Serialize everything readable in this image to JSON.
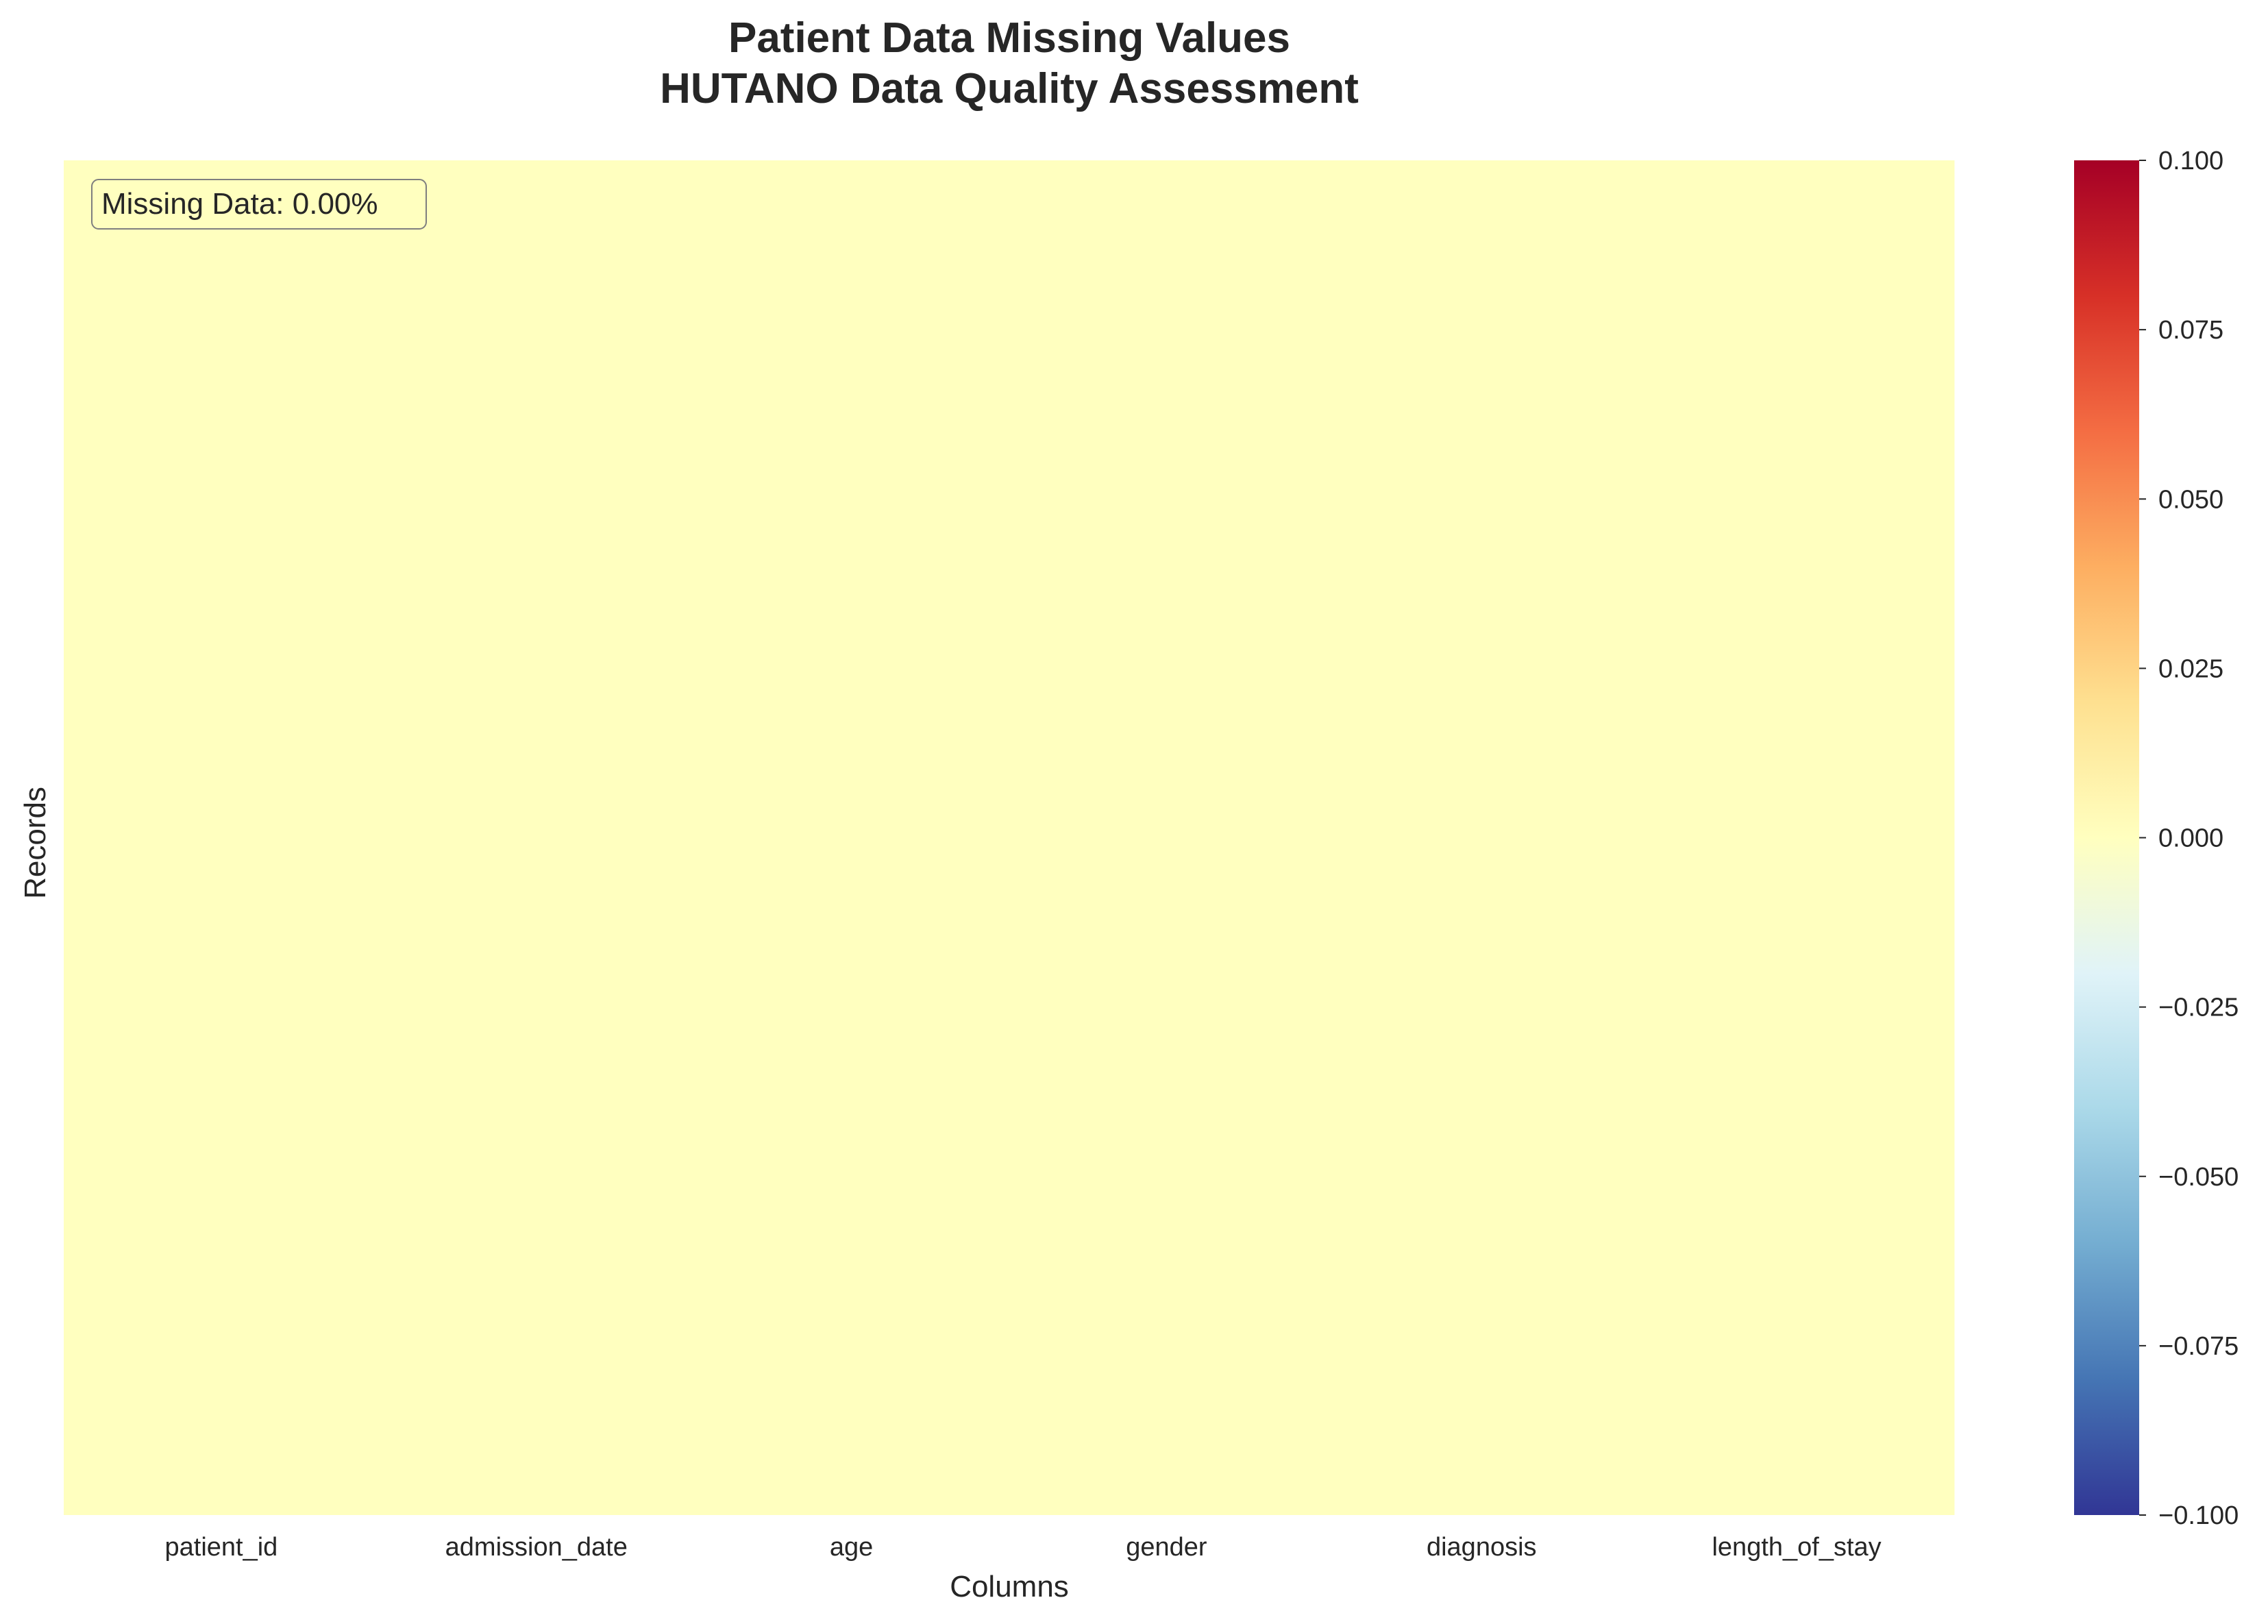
{
  "chart_data": {
    "type": "heatmap",
    "title_line1": "Patient Data Missing Values",
    "title_line2": "HUTANO Data Quality Assessment",
    "xlabel": "Columns",
    "ylabel": "Records",
    "columns": [
      "patient_id",
      "admission_date",
      "age",
      "gender",
      "diagnosis",
      "length_of_stay"
    ],
    "values_all": 0,
    "cell_color": "#ffffbf",
    "annotation": "Missing Data: 0.00%",
    "colorbar": {
      "colormap": "RdYlBu_r",
      "range": [
        -0.1,
        0.1
      ],
      "ticks": [
        0.1,
        0.075,
        0.05,
        0.025,
        0.0,
        -0.025,
        -0.05,
        -0.075,
        -0.1
      ],
      "tick_labels": [
        "0.100",
        "0.075",
        "0.050",
        "0.025",
        "0.000",
        "−0.025",
        "−0.050",
        "−0.075",
        "−0.100"
      ]
    }
  }
}
